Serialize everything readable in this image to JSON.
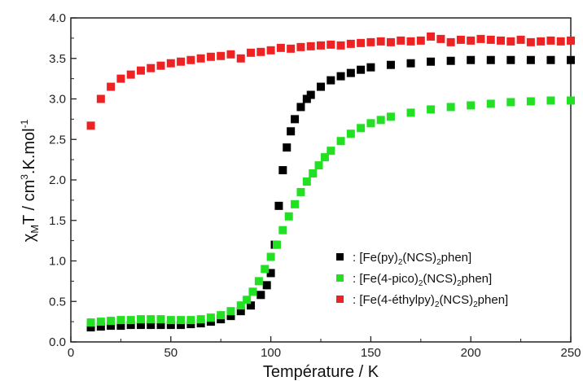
{
  "chart_data": {
    "type": "scatter",
    "xlabel": "Température / K",
    "ylabel_parts": {
      "chi": "χ",
      "sub": "M",
      "t": "T / cm",
      "sup3": "3",
      "mid": ".K.mol",
      "sup": "-1"
    },
    "xlim": [
      0,
      250
    ],
    "ylim": [
      0.0,
      4.0
    ],
    "xticks": [
      "0",
      "50",
      "100",
      "150",
      "200",
      "250"
    ],
    "yticks": [
      "0.0",
      "0.5",
      "1.0",
      "1.5",
      "2.0",
      "2.5",
      "3.0",
      "3.5",
      "4.0"
    ],
    "grid": false,
    "legend_position": "bottom-right",
    "legend": [
      {
        "prefix": ": [Fe(py)",
        "s1": "2",
        "mid": "(NCS)",
        "s2": "2",
        "suffix": "phen]"
      },
      {
        "prefix": ": [Fe(4-pico)",
        "s1": "2",
        "mid": "(NCS)",
        "s2": "2",
        "suffix": "phen]"
      },
      {
        "prefix": ": [Fe(4-éthylpy)",
        "s1": "2",
        "mid": "(NCS)",
        "s2": "2",
        "suffix": "phen]"
      }
    ],
    "series": [
      {
        "color": "#000000",
        "x": [
          10,
          15,
          20,
          25,
          30,
          35,
          40,
          45,
          50,
          55,
          60,
          65,
          70,
          75,
          80,
          85,
          90,
          95,
          98,
          100,
          102,
          104,
          106,
          108,
          110,
          112,
          115,
          118,
          120,
          125,
          130,
          135,
          140,
          145,
          150,
          160,
          170,
          180,
          190,
          200,
          210,
          220,
          230,
          240,
          250
        ],
        "y": [
          0.18,
          0.19,
          0.2,
          0.2,
          0.21,
          0.21,
          0.21,
          0.21,
          0.21,
          0.21,
          0.22,
          0.23,
          0.25,
          0.28,
          0.32,
          0.38,
          0.45,
          0.58,
          0.7,
          0.85,
          1.2,
          1.68,
          2.12,
          2.4,
          2.6,
          2.75,
          2.9,
          3.0,
          3.05,
          3.15,
          3.23,
          3.28,
          3.32,
          3.36,
          3.39,
          3.42,
          3.44,
          3.46,
          3.47,
          3.48,
          3.48,
          3.48,
          3.48,
          3.48,
          3.48
        ]
      },
      {
        "color": "#22e022",
        "x": [
          10,
          15,
          20,
          25,
          30,
          35,
          40,
          45,
          50,
          55,
          60,
          65,
          70,
          75,
          80,
          85,
          88,
          91,
          94,
          97,
          100,
          103,
          106,
          109,
          112,
          115,
          118,
          121,
          124,
          127,
          130,
          135,
          140,
          145,
          150,
          155,
          160,
          170,
          180,
          190,
          200,
          210,
          220,
          230,
          240,
          250
        ],
        "y": [
          0.24,
          0.25,
          0.26,
          0.27,
          0.27,
          0.28,
          0.28,
          0.28,
          0.27,
          0.27,
          0.27,
          0.28,
          0.3,
          0.33,
          0.38,
          0.45,
          0.52,
          0.62,
          0.75,
          0.9,
          1.05,
          1.2,
          1.38,
          1.55,
          1.7,
          1.85,
          1.98,
          2.08,
          2.18,
          2.28,
          2.36,
          2.48,
          2.57,
          2.64,
          2.7,
          2.74,
          2.78,
          2.83,
          2.87,
          2.9,
          2.92,
          2.94,
          2.96,
          2.97,
          2.98,
          2.98
        ]
      },
      {
        "color": "#ee2222",
        "x": [
          10,
          15,
          20,
          25,
          30,
          35,
          40,
          45,
          50,
          55,
          60,
          65,
          70,
          75,
          80,
          85,
          90,
          95,
          100,
          105,
          110,
          115,
          120,
          125,
          130,
          135,
          140,
          145,
          150,
          155,
          160,
          165,
          170,
          175,
          180,
          185,
          190,
          195,
          200,
          205,
          210,
          215,
          220,
          225,
          230,
          235,
          240,
          245,
          250
        ],
        "y": [
          2.67,
          3.0,
          3.15,
          3.25,
          3.3,
          3.35,
          3.38,
          3.41,
          3.44,
          3.46,
          3.48,
          3.5,
          3.52,
          3.53,
          3.55,
          3.5,
          3.57,
          3.58,
          3.6,
          3.63,
          3.62,
          3.64,
          3.65,
          3.66,
          3.67,
          3.66,
          3.68,
          3.69,
          3.7,
          3.71,
          3.7,
          3.72,
          3.71,
          3.72,
          3.77,
          3.74,
          3.7,
          3.73,
          3.72,
          3.74,
          3.73,
          3.72,
          3.71,
          3.73,
          3.7,
          3.71,
          3.72,
          3.71,
          3.72
        ]
      }
    ]
  }
}
